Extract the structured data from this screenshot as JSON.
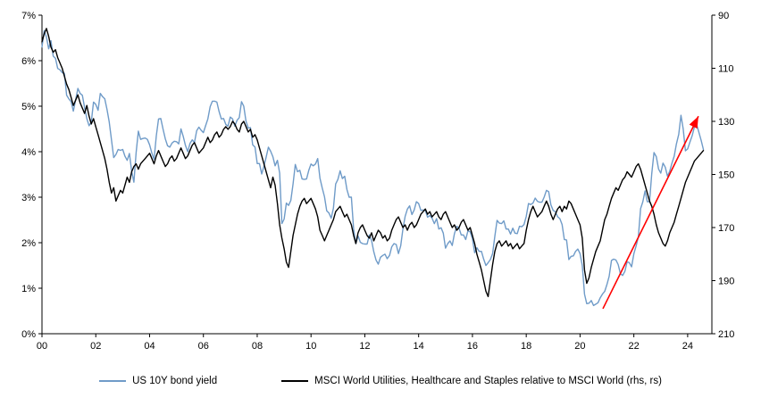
{
  "legend": {
    "series1_label": "US 10Y bond yield",
    "series2_label": "MSCI World Utilities, Healthcare and Staples relative to MSCI World (rhs, rs)"
  },
  "chart_data": {
    "type": "line",
    "title": "",
    "x_start": 2000,
    "x_end": 2024.9,
    "x_tick_years": [
      2000,
      2002,
      2004,
      2006,
      2008,
      2010,
      2012,
      2014,
      2016,
      2018,
      2020,
      2022,
      2024
    ],
    "x_tick_labels": [
      "00",
      "02",
      "04",
      "06",
      "08",
      "10",
      "12",
      "14",
      "16",
      "18",
      "20",
      "22",
      "24"
    ],
    "left_axis": {
      "min": 0,
      "max": 7,
      "tick_values": [
        0,
        1,
        2,
        3,
        4,
        5,
        6,
        7
      ],
      "tick_labels": [
        "0%",
        "1%",
        "2%",
        "3%",
        "4%",
        "5%",
        "6%",
        "7%"
      ]
    },
    "right_axis": {
      "min": 90,
      "max": 210,
      "reversed": true,
      "tick_values": [
        90,
        110,
        130,
        150,
        170,
        190,
        210
      ],
      "tick_labels": [
        "90",
        "110",
        "130",
        "150",
        "170",
        "190",
        "210"
      ]
    },
    "grid": false,
    "legend_position": "bottom",
    "series": [
      {
        "name": "US 10Y bond yield",
        "axis": "left",
        "color": "#6F9BC8",
        "points_per_year": 12,
        "values": [
          6.3,
          6.66,
          6.52,
          6.26,
          6.44,
          6.1,
          6.05,
          5.83,
          5.8,
          5.74,
          5.72,
          5.24,
          5.16,
          5.1,
          4.89,
          5.14,
          5.39,
          5.28,
          5.24,
          4.97,
          4.73,
          4.57,
          4.65,
          5.09,
          5.04,
          4.91,
          5.28,
          5.21,
          5.16,
          4.93,
          4.65,
          4.26,
          3.87,
          3.94,
          4.05,
          4.03,
          4.05,
          3.9,
          3.81,
          3.96,
          3.57,
          3.33,
          3.98,
          4.45,
          4.27,
          4.29,
          4.3,
          4.27,
          4.15,
          3.97,
          3.83,
          4.35,
          4.72,
          4.73,
          4.5,
          4.28,
          4.13,
          4.1,
          4.19,
          4.23,
          4.22,
          4.17,
          4.5,
          4.34,
          4.14,
          4.0,
          4.18,
          4.26,
          4.2,
          4.46,
          4.54,
          4.47,
          4.42,
          4.57,
          4.72,
          4.99,
          5.11,
          5.11,
          5.09,
          4.88,
          4.72,
          4.73,
          4.6,
          4.56,
          4.76,
          4.72,
          4.56,
          4.69,
          4.75,
          5.1,
          5.0,
          4.67,
          4.52,
          4.53,
          4.15,
          4.1,
          3.74,
          3.74,
          3.51,
          3.68,
          3.88,
          4.1,
          4.01,
          3.89,
          3.69,
          3.81,
          3.53,
          2.42,
          2.52,
          2.87,
          2.82,
          2.93,
          3.29,
          3.72,
          3.56,
          3.59,
          3.4,
          3.39,
          3.4,
          3.59,
          3.73,
          3.69,
          3.73,
          3.85,
          3.42,
          3.2,
          3.01,
          2.7,
          2.65,
          2.54,
          2.76,
          3.29,
          3.39,
          3.58,
          3.41,
          3.46,
          3.17,
          3.0,
          3.0,
          2.3,
          1.98,
          2.15,
          2.01,
          1.98,
          1.97,
          1.97,
          2.17,
          2.05,
          1.8,
          1.62,
          1.53,
          1.68,
          1.72,
          1.75,
          1.65,
          1.72,
          1.91,
          1.98,
          1.96,
          1.76,
          1.93,
          2.3,
          2.58,
          2.74,
          2.81,
          2.62,
          2.72,
          2.9,
          2.86,
          2.71,
          2.72,
          2.71,
          2.56,
          2.6,
          2.54,
          2.42,
          2.53,
          2.3,
          2.33,
          2.21,
          1.88,
          1.98,
          2.04,
          1.94,
          2.2,
          2.36,
          2.32,
          2.17,
          2.17,
          2.07,
          2.26,
          2.24,
          2.09,
          1.78,
          1.89,
          1.81,
          1.81,
          1.64,
          1.5,
          1.56,
          1.63,
          1.76,
          2.14,
          2.49,
          2.43,
          2.42,
          2.48,
          2.3,
          2.3,
          2.19,
          2.32,
          2.21,
          2.2,
          2.36,
          2.35,
          2.4,
          2.58,
          2.86,
          2.84,
          2.87,
          2.98,
          2.91,
          2.89,
          2.89,
          3.0,
          3.15,
          3.12,
          2.83,
          2.71,
          2.68,
          2.57,
          2.53,
          2.4,
          2.07,
          2.06,
          1.63,
          1.7,
          1.71,
          1.81,
          1.86,
          1.76,
          1.5,
          0.87,
          0.66,
          0.67,
          0.73,
          0.62,
          0.65,
          0.68,
          0.79,
          0.87,
          0.93,
          1.08,
          1.26,
          1.61,
          1.64,
          1.62,
          1.52,
          1.32,
          1.28,
          1.37,
          1.58,
          1.56,
          1.47,
          1.76,
          1.93,
          2.13,
          2.75,
          2.9,
          3.14,
          2.9,
          2.9,
          3.52,
          3.98,
          3.89,
          3.62,
          3.53,
          3.75,
          3.66,
          3.46,
          3.57,
          3.75,
          3.9,
          4.17,
          4.38,
          4.8,
          4.5,
          4.02,
          4.06,
          4.21,
          4.35,
          4.54,
          4.6,
          4.43,
          4.25,
          4.05
        ]
      },
      {
        "name": "MSCI World Utilities, Healthcare and Staples relative to MSCI World (rhs, rs)",
        "axis": "right",
        "color": "#000000",
        "points_per_year": 12,
        "values": [
          100,
          97,
          95,
          98,
          102,
          104,
          103,
          106,
          108,
          110,
          113,
          116,
          118,
          121,
          124,
          122,
          120,
          123,
          125,
          127,
          124,
          128,
          131,
          129,
          132,
          135,
          138,
          141,
          144,
          148,
          153,
          157,
          155,
          160,
          158,
          156,
          157,
          154,
          151,
          153,
          149,
          147,
          146,
          148,
          146,
          145,
          144,
          143,
          142,
          144,
          146,
          143,
          141,
          143,
          145,
          147,
          146,
          144,
          143,
          145,
          144,
          142,
          140,
          142,
          144,
          143,
          141,
          139,
          138,
          140,
          142,
          141,
          140,
          138,
          136,
          138,
          137,
          135,
          134,
          136,
          135,
          133,
          132,
          133,
          132,
          130,
          131,
          133,
          134,
          131,
          130,
          132,
          134,
          133,
          136,
          135,
          137,
          140,
          143,
          146,
          149,
          152,
          155,
          151,
          154,
          161,
          169,
          174,
          178,
          183,
          185,
          179,
          173,
          169,
          165,
          162,
          160,
          159,
          161,
          160,
          159,
          161,
          163,
          166,
          171,
          173,
          175,
          173,
          171,
          169,
          167,
          164,
          163,
          162,
          164,
          166,
          165,
          167,
          169,
          173,
          176,
          172,
          170,
          169,
          171,
          173,
          174,
          172,
          175,
          173,
          171,
          172,
          174,
          173,
          175,
          174,
          171,
          169,
          167,
          166,
          168,
          170,
          169,
          171,
          169,
          168,
          170,
          169,
          167,
          165,
          164,
          163,
          165,
          164,
          166,
          165,
          164,
          166,
          167,
          165,
          164,
          166,
          168,
          170,
          169,
          171,
          170,
          168,
          167,
          169,
          171,
          170,
          173,
          176,
          180,
          183,
          186,
          190,
          194,
          196,
          190,
          184,
          179,
          176,
          175,
          177,
          176,
          175,
          177,
          176,
          178,
          177,
          176,
          178,
          177,
          176,
          171,
          167,
          164,
          162,
          164,
          166,
          165,
          164,
          162,
          160,
          162,
          165,
          167,
          165,
          163,
          162,
          164,
          162,
          163,
          160,
          161,
          163,
          165,
          167,
          169,
          174,
          186,
          191,
          189,
          185,
          182,
          179,
          177,
          175,
          171,
          167,
          165,
          162,
          159,
          157,
          155,
          156,
          154,
          152,
          151,
          149,
          150,
          151,
          149,
          147,
          146,
          148,
          151,
          154,
          157,
          160,
          162,
          165,
          169,
          172,
          174,
          176,
          177,
          175,
          172,
          170,
          168,
          165,
          162,
          159,
          156,
          153,
          151,
          149,
          147,
          145,
          144,
          143,
          142,
          141
        ]
      }
    ],
    "annotation_arrow": {
      "color": "#FF0000",
      "x1": 2020.85,
      "y1_left": 0.55,
      "x2": 2024.4,
      "y2_left": 4.78
    }
  }
}
